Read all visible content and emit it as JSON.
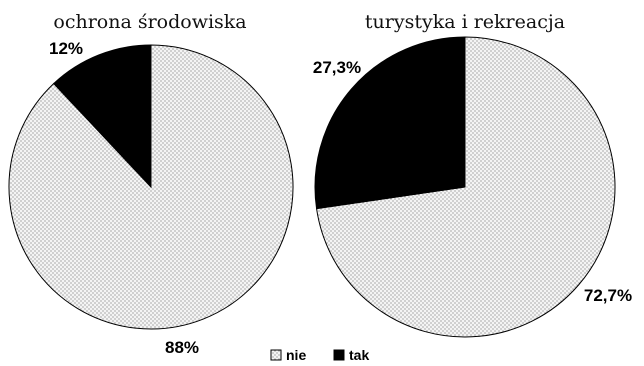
{
  "chart_data": [
    {
      "type": "pie",
      "title": "ochrona środowiska",
      "slices": [
        {
          "label": "nie",
          "value": 88,
          "text": "88%",
          "pattern": "dots"
        },
        {
          "label": "tak",
          "value": 12,
          "text": "12%",
          "pattern": "solid"
        }
      ]
    },
    {
      "type": "pie",
      "title": "turystyka i rekreacja",
      "slices": [
        {
          "label": "nie",
          "value": 72.7,
          "text": "72,7%",
          "pattern": "dots"
        },
        {
          "label": "tak",
          "value": 27.3,
          "text": "27,3%",
          "pattern": "solid"
        }
      ]
    }
  ],
  "legend": [
    {
      "label": "nie",
      "pattern": "dots"
    },
    {
      "label": "tak",
      "pattern": "solid"
    }
  ],
  "colors": {
    "fill_dark": "#000000",
    "fill_light": "#f4f4f4",
    "dot": "#777777"
  }
}
